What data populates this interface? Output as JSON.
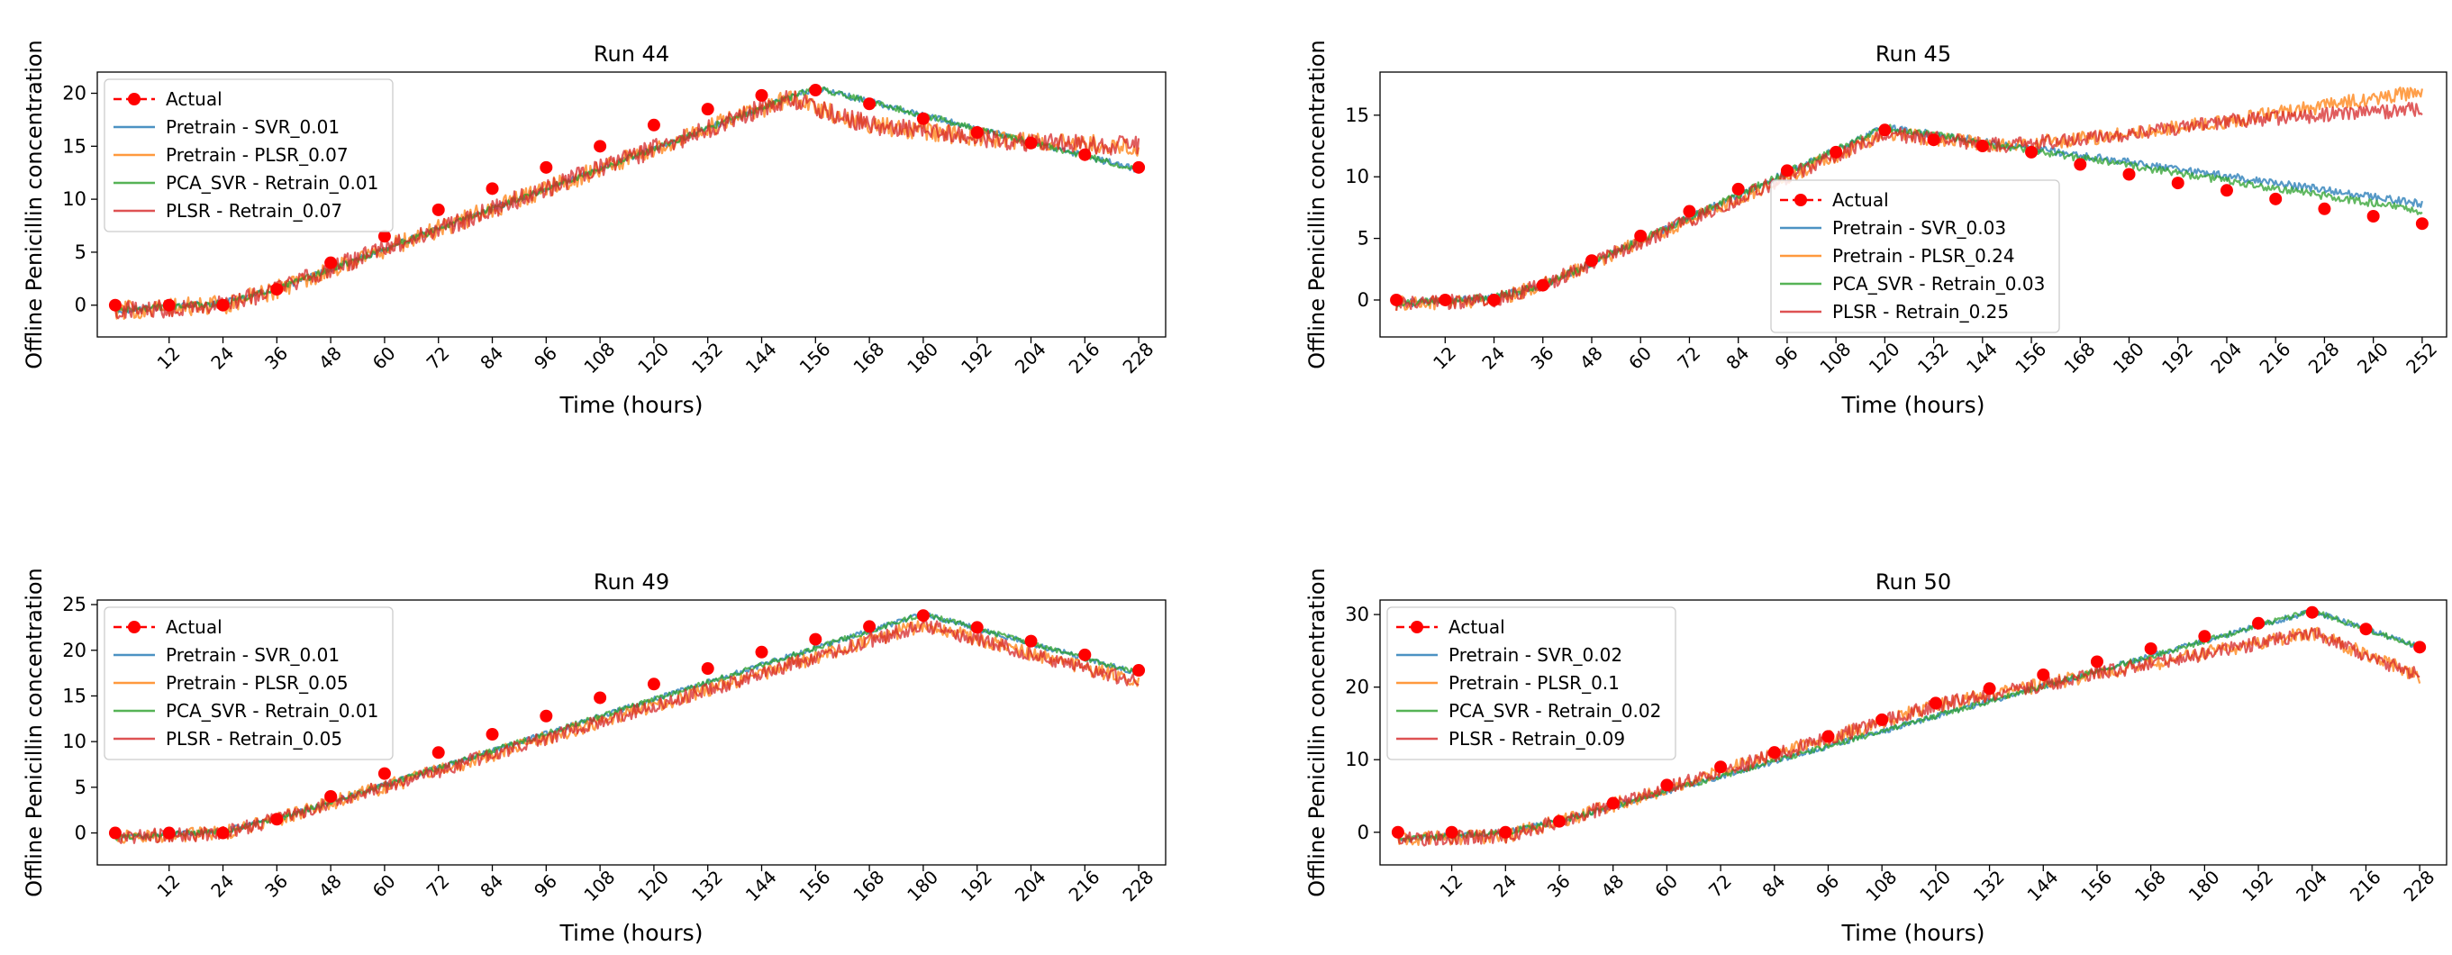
{
  "figure": {
    "colors": {
      "actual": "#ff0000",
      "pretrain_svr": "#1f77b4",
      "pretrain_plsr": "#ff7f0e",
      "pca_svr_retrain": "#2ca02c",
      "plsr_retrain": "#d62728"
    }
  },
  "chart_data": [
    {
      "type": "line",
      "title": "Run 44",
      "xlabel": "Time (hours)",
      "ylabel": "Offline Penicillin concentration",
      "xlim": [
        -4,
        234
      ],
      "ylim": [
        -3,
        22
      ],
      "xticks": [
        12,
        24,
        36,
        48,
        60,
        72,
        84,
        96,
        108,
        120,
        132,
        144,
        156,
        168,
        180,
        192,
        204,
        216,
        228
      ],
      "yticks": [
        0,
        5,
        10,
        15,
        20
      ],
      "legend_position": "upper left",
      "grid": false,
      "actual": {
        "name": "Actual",
        "x": [
          0,
          12,
          24,
          36,
          48,
          60,
          72,
          84,
          96,
          108,
          120,
          132,
          144,
          156,
          168,
          180,
          192,
          204,
          216,
          228
        ],
        "y": [
          0,
          0,
          0,
          1.5,
          4,
          6.5,
          9,
          11,
          13,
          15,
          17,
          18.5,
          19.8,
          20.3,
          19,
          17.6,
          16.3,
          15.3,
          14.2,
          13
        ]
      },
      "series": [
        {
          "name": "Pretrain - SVR_0.01",
          "color_key": "pretrain_svr",
          "noise": 0.3,
          "x": [
            0,
            24,
            36,
            156,
            228
          ],
          "y": [
            -0.5,
            0.2,
            1.5,
            20.5,
            12.8
          ]
        },
        {
          "name": "Pretrain - PLSR_0.07",
          "color_key": "pretrain_plsr",
          "noise": 0.9,
          "x": [
            0,
            24,
            36,
            150,
            168,
            200,
            228
          ],
          "y": [
            -0.5,
            0,
            1.5,
            19.5,
            17,
            15.5,
            15
          ]
        },
        {
          "name": "PCA_SVR - Retrain_0.01",
          "color_key": "pca_svr_retrain",
          "noise": 0.3,
          "x": [
            0,
            24,
            36,
            156,
            228
          ],
          "y": [
            -0.5,
            0.2,
            1.5,
            20.5,
            12.8
          ]
        },
        {
          "name": "PLSR - Retrain_0.07",
          "color_key": "plsr_retrain",
          "noise": 0.9,
          "x": [
            0,
            24,
            36,
            150,
            168,
            200,
            228
          ],
          "y": [
            -0.5,
            0,
            1.5,
            19.5,
            17,
            15.5,
            15
          ]
        }
      ]
    },
    {
      "type": "line",
      "title": "Run 45",
      "xlabel": "Time (hours)",
      "ylabel": "Offline Penicillin concentration",
      "xlim": [
        -4,
        258
      ],
      "ylim": [
        -3,
        18.5
      ],
      "xticks": [
        12,
        24,
        36,
        48,
        60,
        72,
        84,
        96,
        108,
        120,
        132,
        144,
        156,
        168,
        180,
        192,
        204,
        216,
        228,
        240,
        252
      ],
      "yticks": [
        0,
        5,
        10,
        15
      ],
      "legend_position": "center",
      "grid": false,
      "actual": {
        "name": "Actual",
        "x": [
          0,
          12,
          24,
          36,
          48,
          60,
          72,
          84,
          96,
          108,
          120,
          132,
          144,
          156,
          168,
          180,
          192,
          204,
          216,
          228,
          240,
          252
        ],
        "y": [
          0,
          0,
          0,
          1.2,
          3.2,
          5.2,
          7.2,
          9,
          10.5,
          12,
          13.8,
          13,
          12.5,
          12,
          11,
          10.2,
          9.5,
          8.9,
          8.2,
          7.4,
          6.8,
          6.2
        ]
      },
      "series": [
        {
          "name": "Pretrain - SVR_0.03",
          "color_key": "pretrain_svr",
          "noise": 0.3,
          "x": [
            0,
            24,
            36,
            120,
            252
          ],
          "y": [
            -0.3,
            0.2,
            1.2,
            14,
            7.8
          ]
        },
        {
          "name": "Pretrain - PLSR_0.24",
          "color_key": "pretrain_plsr",
          "noise": 0.6,
          "x": [
            0,
            24,
            36,
            120,
            150,
            180,
            204,
            252
          ],
          "y": [
            -0.3,
            0,
            1.2,
            13.5,
            12.5,
            13.5,
            14.5,
            17
          ]
        },
        {
          "name": "PCA_SVR - Retrain_0.03",
          "color_key": "pca_svr_retrain",
          "noise": 0.3,
          "x": [
            0,
            24,
            36,
            120,
            252
          ],
          "y": [
            -0.3,
            0.2,
            1.2,
            14,
            7.2
          ]
        },
        {
          "name": "PLSR - Retrain_0.25",
          "color_key": "plsr_retrain",
          "noise": 0.6,
          "x": [
            0,
            24,
            36,
            120,
            150,
            180,
            204,
            252
          ],
          "y": [
            -0.3,
            0,
            1.2,
            13.5,
            12.5,
            13.5,
            14.5,
            15.5
          ]
        }
      ]
    },
    {
      "type": "line",
      "title": "Run 49",
      "xlabel": "Time (hours)",
      "ylabel": "Offline Penicillin concentration",
      "xlim": [
        -4,
        234
      ],
      "ylim": [
        -3.5,
        25.5
      ],
      "xticks": [
        12,
        24,
        36,
        48,
        60,
        72,
        84,
        96,
        108,
        120,
        132,
        144,
        156,
        168,
        180,
        192,
        204,
        216,
        228
      ],
      "yticks": [
        0,
        5,
        10,
        15,
        20,
        25
      ],
      "legend_position": "upper left",
      "grid": false,
      "actual": {
        "name": "Actual",
        "x": [
          0,
          12,
          24,
          36,
          48,
          60,
          72,
          84,
          96,
          108,
          120,
          132,
          144,
          156,
          168,
          180,
          192,
          204,
          216,
          228
        ],
        "y": [
          0,
          0,
          0,
          1.5,
          4,
          6.5,
          8.8,
          10.8,
          12.8,
          14.8,
          16.3,
          18,
          19.8,
          21.2,
          22.6,
          23.8,
          22.5,
          21,
          19.5,
          17.8
        ]
      },
      "series": [
        {
          "name": "Pretrain - SVR_0.01",
          "color_key": "pretrain_svr",
          "noise": 0.3,
          "x": [
            0,
            24,
            36,
            180,
            228
          ],
          "y": [
            -0.5,
            0.2,
            1.5,
            24,
            17.5
          ]
        },
        {
          "name": "Pretrain - PLSR_0.05",
          "color_key": "pretrain_plsr",
          "noise": 0.8,
          "x": [
            0,
            24,
            36,
            180,
            228
          ],
          "y": [
            -0.5,
            0,
            1.5,
            22.8,
            16.5
          ]
        },
        {
          "name": "PCA_SVR - Retrain_0.01",
          "color_key": "pca_svr_retrain",
          "noise": 0.3,
          "x": [
            0,
            24,
            36,
            180,
            228
          ],
          "y": [
            -0.5,
            0.2,
            1.5,
            24,
            17.5
          ]
        },
        {
          "name": "PLSR - Retrain_0.05",
          "color_key": "plsr_retrain",
          "noise": 0.8,
          "x": [
            0,
            24,
            36,
            180,
            228
          ],
          "y": [
            -0.5,
            0,
            1.5,
            22.8,
            16.5
          ]
        }
      ]
    },
    {
      "type": "line",
      "title": "Run 50",
      "xlabel": "Time (hours)",
      "ylabel": "Offline Penicillin concentration",
      "xlim": [
        -4,
        234
      ],
      "ylim": [
        -4.5,
        32
      ],
      "xticks": [
        12,
        24,
        36,
        48,
        60,
        72,
        84,
        96,
        108,
        120,
        132,
        144,
        156,
        168,
        180,
        192,
        204,
        216,
        228
      ],
      "yticks": [
        0,
        10,
        20,
        30
      ],
      "legend_position": "upper left",
      "grid": false,
      "actual": {
        "name": "Actual",
        "x": [
          0,
          12,
          24,
          36,
          48,
          60,
          72,
          84,
          96,
          108,
          120,
          132,
          144,
          156,
          168,
          180,
          192,
          204,
          216,
          228
        ],
        "y": [
          0,
          0,
          0,
          1.5,
          4,
          6.5,
          9,
          11,
          13.2,
          15.5,
          17.8,
          19.8,
          21.7,
          23.5,
          25.3,
          27,
          28.8,
          30.3,
          28,
          25.5
        ]
      },
      "series": [
        {
          "name": "Pretrain - SVR_0.02",
          "color_key": "pretrain_svr",
          "noise": 0.4,
          "x": [
            0,
            24,
            36,
            204,
            228
          ],
          "y": [
            -1,
            0,
            1.5,
            30.5,
            25.5
          ]
        },
        {
          "name": "Pretrain - PLSR_0.1",
          "color_key": "pretrain_plsr",
          "noise": 1.0,
          "x": [
            0,
            24,
            36,
            120,
            204,
            228
          ],
          "y": [
            -1,
            -0.5,
            1.5,
            17.5,
            27.5,
            21.5
          ]
        },
        {
          "name": "PCA_SVR - Retrain_0.02",
          "color_key": "pca_svr_retrain",
          "noise": 0.4,
          "x": [
            0,
            24,
            36,
            204,
            228
          ],
          "y": [
            -1,
            0,
            1.5,
            30.5,
            25.5
          ]
        },
        {
          "name": "PLSR - Retrain_0.09",
          "color_key": "plsr_retrain",
          "noise": 1.0,
          "x": [
            0,
            24,
            36,
            120,
            204,
            228
          ],
          "y": [
            -1,
            -0.5,
            1.5,
            17.5,
            27.5,
            21.5
          ]
        }
      ]
    }
  ]
}
